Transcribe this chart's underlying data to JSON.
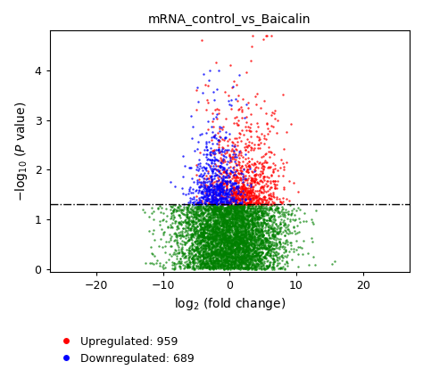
{
  "title": "mRNA_control_vs_Baicalin",
  "xlabel": "log$_2$ (fold change)",
  "ylabel": "$-$log$_{10}$ ($P$ value)",
  "threshold_y": 1.3,
  "xlim": [
    -27,
    27
  ],
  "ylim": [
    -0.05,
    4.8
  ],
  "xticks": [
    -20,
    -10,
    0,
    10,
    20
  ],
  "yticks": [
    0,
    1,
    2,
    3,
    4
  ],
  "n_upregulated": 959,
  "n_downregulated": 689,
  "color_up": "#FF0000",
  "color_down": "#0000FF",
  "color_ns": "#008000",
  "seed": 42,
  "n_green": 5000,
  "n_red": 959,
  "n_blue": 689,
  "background_color": "#ffffff"
}
